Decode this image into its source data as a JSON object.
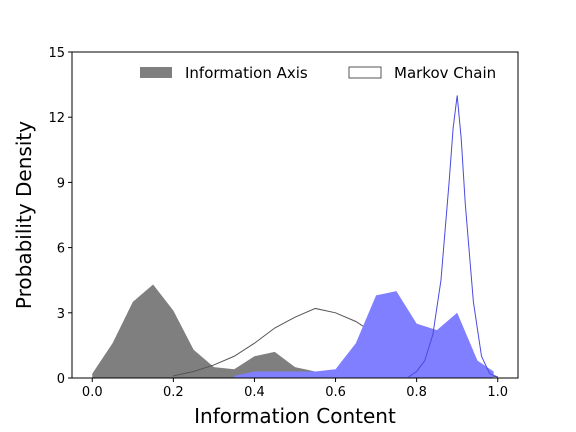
{
  "chart_data": {
    "type": "histogram",
    "title": "",
    "xlabel": "Information Content",
    "ylabel": "Probability Density",
    "xlim": [
      -0.05,
      1.05
    ],
    "ylim": [
      0,
      15
    ],
    "xticks": [
      0.0,
      0.2,
      0.4,
      0.6,
      0.8,
      1.0
    ],
    "xtick_labels": [
      "0.0",
      "0.2",
      "0.4",
      "0.6",
      "0.8",
      "1.0"
    ],
    "yticks": [
      0,
      3,
      6,
      9,
      12,
      15
    ],
    "ytick_labels": [
      "0",
      "3",
      "6",
      "9",
      "12",
      "15"
    ],
    "legend": {
      "location": "top",
      "entries": [
        {
          "label": "Information Axis",
          "style": "filled",
          "color": "#7f7f7f"
        },
        {
          "label": "Markov Chain",
          "style": "outline",
          "color": "#555555"
        }
      ]
    },
    "series": [
      {
        "name": "Information Axis (gray)",
        "style": "filled",
        "color": "#7f7f7f",
        "points": [
          [
            0.0,
            0.2
          ],
          [
            0.05,
            1.6
          ],
          [
            0.1,
            3.5
          ],
          [
            0.15,
            4.3
          ],
          [
            0.2,
            3.1
          ],
          [
            0.25,
            1.3
          ],
          [
            0.3,
            0.5
          ],
          [
            0.35,
            0.4
          ],
          [
            0.4,
            1.0
          ],
          [
            0.45,
            1.2
          ],
          [
            0.5,
            0.5
          ],
          [
            0.55,
            0.3
          ],
          [
            0.6,
            0.3
          ],
          [
            0.65,
            0.2
          ],
          [
            0.7,
            0.1
          ],
          [
            0.75,
            0.05
          ],
          [
            0.8,
            0.02
          ]
        ]
      },
      {
        "name": "Markov Chain (gray outline)",
        "style": "outline",
        "color": "#555555",
        "points": [
          [
            0.2,
            0.1
          ],
          [
            0.25,
            0.3
          ],
          [
            0.3,
            0.6
          ],
          [
            0.35,
            1.0
          ],
          [
            0.4,
            1.6
          ],
          [
            0.45,
            2.3
          ],
          [
            0.5,
            2.8
          ],
          [
            0.55,
            3.2
          ],
          [
            0.6,
            3.0
          ],
          [
            0.65,
            2.6
          ],
          [
            0.7,
            2.0
          ],
          [
            0.75,
            1.4
          ],
          [
            0.8,
            1.0
          ],
          [
            0.85,
            0.6
          ],
          [
            0.9,
            0.3
          ],
          [
            0.95,
            0.15
          ],
          [
            1.0,
            0.05
          ]
        ]
      },
      {
        "name": "Information Axis (blue)",
        "style": "filled",
        "color": "#7f7fff",
        "points": [
          [
            0.35,
            0.1
          ],
          [
            0.4,
            0.3
          ],
          [
            0.45,
            0.3
          ],
          [
            0.5,
            0.3
          ],
          [
            0.55,
            0.3
          ],
          [
            0.6,
            0.4
          ],
          [
            0.65,
            1.6
          ],
          [
            0.7,
            3.8
          ],
          [
            0.75,
            4.0
          ],
          [
            0.8,
            2.5
          ],
          [
            0.85,
            2.2
          ],
          [
            0.9,
            3.0
          ],
          [
            0.95,
            0.8
          ],
          [
            0.99,
            0.3
          ]
        ]
      },
      {
        "name": "Markov Chain (blue outline)",
        "style": "outline",
        "color": "#4a4adf",
        "points": [
          [
            0.78,
            0.05
          ],
          [
            0.8,
            0.3
          ],
          [
            0.82,
            0.8
          ],
          [
            0.84,
            2.0
          ],
          [
            0.86,
            4.5
          ],
          [
            0.88,
            9.0
          ],
          [
            0.89,
            11.5
          ],
          [
            0.9,
            13.0
          ],
          [
            0.91,
            11.0
          ],
          [
            0.92,
            8.0
          ],
          [
            0.94,
            3.5
          ],
          [
            0.96,
            1.0
          ],
          [
            0.98,
            0.2
          ],
          [
            1.0,
            0.05
          ]
        ]
      }
    ]
  }
}
